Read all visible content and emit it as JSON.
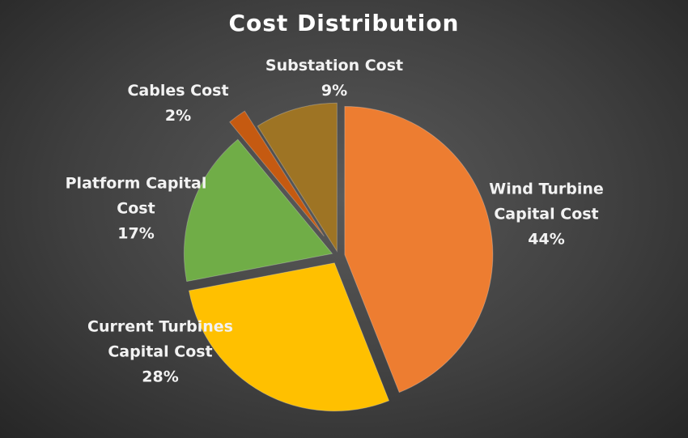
{
  "chart_data": {
    "type": "pie",
    "title": "Cost Distribution",
    "categories": [
      "Wind Turbine Capital Cost",
      "Current Turbines Capital Cost",
      "Platform Capital Cost",
      "Cables Cost",
      "Substation Cost"
    ],
    "values": [
      44,
      28,
      17,
      2,
      9
    ],
    "value_labels": [
      "44%",
      "28%",
      "17%",
      "2%",
      "9%"
    ],
    "colors": [
      "#ED7D31",
      "#FFC000",
      "#70AD47",
      "#C55A11",
      "#9E7424"
    ]
  }
}
